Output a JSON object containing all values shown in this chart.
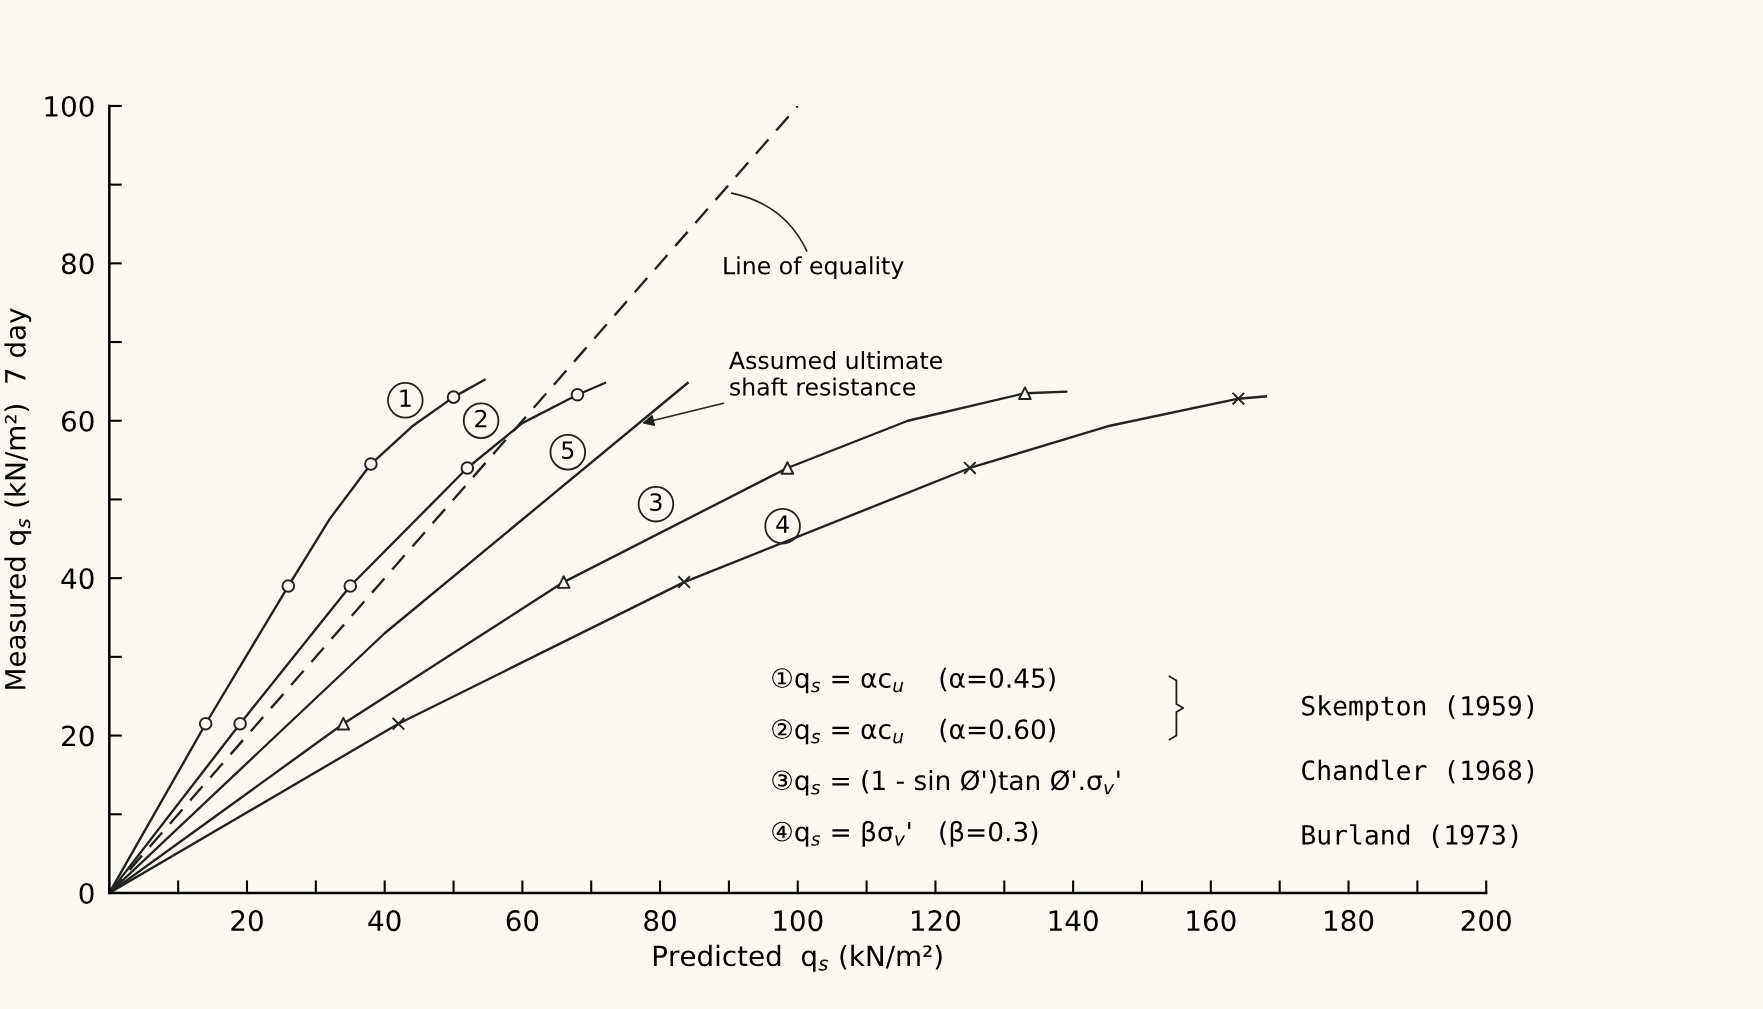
{
  "chart_data": {
    "type": "line",
    "xlabel": "Predicted  q$_{s}$ (kN/m²)",
    "ylabel": "Measured q$_{s}$ (kN/m²)  7 day",
    "xlim": [
      0,
      200
    ],
    "ylim": [
      0,
      100
    ],
    "xticks": [
      {
        "value": 0,
        "label": null
      },
      {
        "value": 10,
        "label": null
      },
      20,
      {
        "value": 30,
        "label": null
      },
      40,
      {
        "value": 50,
        "label": null
      },
      60,
      {
        "value": 70,
        "label": null
      },
      80,
      {
        "value": 90,
        "label": null
      },
      100,
      {
        "value": 110,
        "label": null
      },
      120,
      {
        "value": 130,
        "label": null
      },
      140,
      {
        "value": 150,
        "label": null
      },
      160,
      {
        "value": 170,
        "label": null
      },
      180,
      {
        "value": 190,
        "label": null
      },
      200
    ],
    "yticks": [
      0,
      {
        "value": 10,
        "label": null
      },
      20,
      {
        "value": 30,
        "label": null
      },
      40,
      {
        "value": 50,
        "label": null
      },
      60,
      {
        "value": 70,
        "label": null
      },
      80,
      {
        "value": 90,
        "label": null
      },
      100
    ],
    "grid": false,
    "legend": false,
    "series": [
      {
        "color": "#222222",
        "line_style": "dashed",
        "x": [
          0,
          100
        ],
        "values": [
          0,
          100
        ]
      },
      {
        "color": "#222222",
        "line_style": "solid",
        "x": [
          0,
          14,
          26,
          32,
          38,
          44,
          50,
          54.5
        ],
        "values": [
          0,
          21.5,
          39,
          47.5,
          54.5,
          59.3,
          63,
          65.2
        ]
      },
      {
        "color": "#222222",
        "line_style": "solid",
        "x": [
          0,
          19,
          35,
          52,
          60,
          68,
          72
        ],
        "values": [
          0,
          21.5,
          39,
          54,
          59.7,
          63.3,
          64.8
        ]
      },
      {
        "color": "#222222",
        "line_style": "solid",
        "x": [
          0,
          40,
          84
        ],
        "values": [
          0,
          33,
          64.8
        ]
      },
      {
        "color": "#222222",
        "line_style": "solid",
        "x": [
          0,
          34,
          66,
          98.5,
          116,
          133,
          139
        ],
        "values": [
          0,
          21.5,
          39.5,
          54,
          60,
          63.5,
          63.7
        ]
      },
      {
        "color": "#222222",
        "line_style": "solid",
        "x": [
          0,
          42,
          83.5,
          125,
          145,
          164,
          168
        ],
        "values": [
          0,
          21.5,
          39.5,
          54,
          59.3,
          62.8,
          63.1
        ]
      },
      {
        "type": "scatter",
        "color": "#222222",
        "marker": "circle",
        "x": [
          14,
          26,
          38,
          50
        ],
        "values": [
          21.5,
          39,
          54.5,
          63
        ]
      },
      {
        "type": "scatter",
        "color": "#222222",
        "marker": "circle",
        "x": [
          19,
          35,
          52,
          68
        ],
        "values": [
          21.5,
          39,
          54,
          63.3
        ]
      },
      {
        "type": "scatter",
        "color": "#222222",
        "marker": "triangle",
        "x": [
          34,
          66,
          98.5,
          133
        ],
        "values": [
          21.5,
          39.5,
          54,
          63.5
        ]
      },
      {
        "type": "scatter",
        "color": "#222222",
        "marker": "cross",
        "x": [
          42,
          83.5,
          125,
          164
        ],
        "values": [
          21.5,
          39.5,
          54,
          62.8
        ]
      }
    ],
    "annotations": [
      {
        "text": "1",
        "x": 43,
        "y": 62.6
      },
      {
        "text": "2",
        "x": 54,
        "y": 60
      },
      {
        "text": "5",
        "x": 66.6,
        "y": 56
      },
      {
        "text": "3",
        "x": 79.4,
        "y": 49.4
      },
      {
        "text": "4",
        "x": 97.8,
        "y": 46.6
      },
      {
        "text": "Line of equality",
        "x": 90,
        "y": 89
      },
      {
        "text": "Assumed ultimate\nshaft resistance",
        "x": 77,
        "y": 59.6
      },
      "①q$_{s}$ = αc$_{u}$    (α=0.45)",
      "②q$_{s}$ = αc$_{u}$    (α=0.60)",
      "③q$_{s}$ = (1 - sin Ø')tan Ø'.σ$_{v}$'",
      "④q$_{s}$ = βσ$_{v}$'   (β=0.3)",
      "Skempton (1959)",
      "Chandler (1968)",
      "Burland (1973)"
    ]
  }
}
